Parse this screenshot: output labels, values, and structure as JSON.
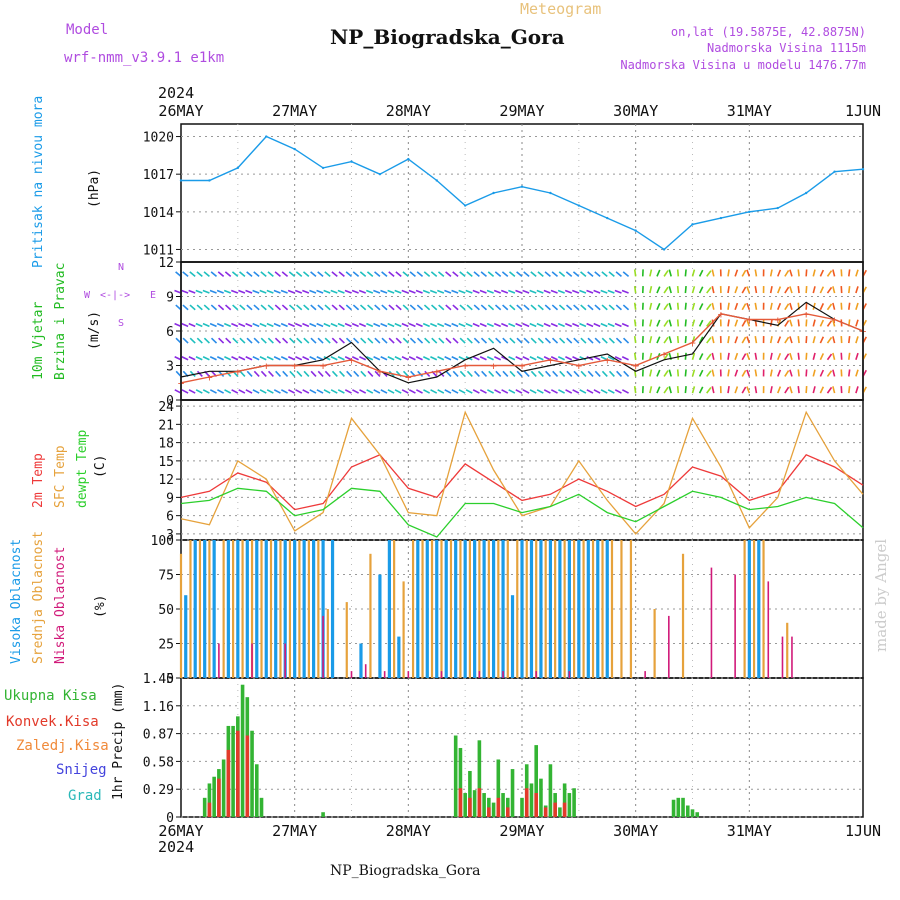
{
  "header": {
    "model_label": "Model",
    "model_name": "wrf-nmm_v3.9.1 e1km",
    "meteogram_label": "Meteogram",
    "station_title": "NP_Biogradska_Gora",
    "lonlat": "on,lat (19.5875E, 42.8875N)",
    "altitude": "Nadmorska Visina 1115m",
    "model_altitude": "Nadmorska Visina u modelu 1476.77m",
    "footer_station": "NP_Biogradska_Gora",
    "credit": "made by Angel"
  },
  "colors": {
    "purple": "#b04ce0",
    "pressure": "#1a9be8",
    "wind_green": "#22bb22",
    "temp2m": "#ee3a3a",
    "sfc_temp": "#e6a23c",
    "dewpt": "#2ccf2c",
    "high_cloud": "#1a9be8",
    "mid_cloud": "#e6a23c",
    "low_cloud": "#d11a7a",
    "total_precip": "#33b433",
    "conv_precip": "#e23a2a",
    "snow": "#4444dd",
    "grad": "#2ab8b8",
    "meteogram_title": "#e8c27c"
  },
  "chart_data": [
    {
      "type": "line",
      "panel": "pressure",
      "ylabel_left": "Pritisak na nivou mora",
      "ylabel_unit": "(hPa)",
      "ylim": [
        1010,
        1021
      ],
      "yticks": [
        1011,
        1014,
        1017,
        1020
      ],
      "x_ticks": [
        "26MAY",
        "27MAY",
        "28MAY",
        "29MAY",
        "30MAY",
        "31MAY",
        "1JUN"
      ],
      "x_year": "2024",
      "x": [
        0,
        6,
        12,
        18,
        24,
        30,
        36,
        42,
        48,
        54,
        60,
        66,
        72,
        78,
        84,
        90,
        96,
        102,
        108,
        114,
        120,
        126,
        132,
        138,
        144
      ],
      "values": [
        1016.5,
        1016.5,
        1017.5,
        1020.0,
        1019.0,
        1017.5,
        1018.0,
        1017.0,
        1018.2,
        1016.5,
        1014.5,
        1015.5,
        1016.0,
        1015.5,
        1014.5,
        1013.5,
        1012.5,
        1011.0,
        1013.0,
        1013.5,
        1014.0,
        1014.3,
        1015.5,
        1017.2,
        1017.4
      ]
    },
    {
      "type": "line",
      "panel": "wind",
      "ylabel_left": "10m Vjetar Brzina i Pravac",
      "ylabel_unit": "(m/s)",
      "ylim": [
        0,
        12
      ],
      "yticks": [
        0,
        3,
        6,
        9,
        12
      ],
      "compass": {
        "n": "N",
        "s": "S",
        "w": "W",
        "e": "E"
      },
      "x": [
        0,
        6,
        12,
        18,
        24,
        30,
        36,
        42,
        48,
        54,
        60,
        66,
        72,
        78,
        84,
        90,
        96,
        102,
        108,
        114,
        120,
        126,
        132,
        138,
        144
      ],
      "series": [
        {
          "values": [
            2.0,
            2.5,
            2.5,
            3.0,
            3.0,
            3.5,
            5.0,
            2.5,
            1.5,
            2.0,
            3.5,
            4.5,
            2.5,
            3.0,
            3.5,
            4.0,
            2.5,
            3.5,
            4.0,
            7.5,
            7.0,
            6.5,
            8.5,
            7.0,
            6.0
          ]
        },
        {
          "values": [
            1.5,
            2.0,
            2.5,
            3.0,
            3.0,
            3.0,
            3.5,
            2.5,
            2.0,
            2.5,
            3.0,
            3.0,
            3.0,
            3.5,
            3.0,
            3.5,
            3.0,
            4.0,
            5.0,
            7.5,
            7.0,
            7.0,
            7.5,
            7.0,
            6.0
          ]
        }
      ]
    },
    {
      "type": "line",
      "panel": "temperature",
      "ylabel_unit": "(C)",
      "ylim": [
        2,
        25
      ],
      "yticks": [
        3,
        6,
        9,
        12,
        15,
        18,
        21,
        24
      ],
      "x": [
        0,
        6,
        12,
        18,
        24,
        30,
        36,
        42,
        48,
        54,
        60,
        66,
        72,
        78,
        84,
        90,
        96,
        102,
        108,
        114,
        120,
        126,
        132,
        138,
        144
      ],
      "series": [
        {
          "name": "2m Temp",
          "values": [
            9.0,
            10.0,
            13.0,
            11.5,
            7.0,
            8.0,
            14.0,
            16.0,
            10.5,
            9.0,
            14.5,
            11.5,
            8.5,
            9.5,
            12.0,
            10.0,
            7.5,
            9.5,
            14.0,
            12.5,
            8.5,
            10.0,
            16.0,
            14.0,
            11.0
          ]
        },
        {
          "name": "SFC Temp",
          "values": [
            5.5,
            4.5,
            15.0,
            12.0,
            3.5,
            6.5,
            22.0,
            16.0,
            6.5,
            6.0,
            23.0,
            13.5,
            6.0,
            7.5,
            15.0,
            8.5,
            3.0,
            8.0,
            22.0,
            14.0,
            4.0,
            9.0,
            23.0,
            15.0,
            9.5
          ]
        },
        {
          "name": "dewpt Temp",
          "values": [
            8.0,
            8.5,
            10.5,
            10.0,
            6.0,
            7.0,
            10.5,
            10.0,
            4.5,
            2.5,
            8.0,
            8.0,
            6.5,
            7.5,
            9.5,
            6.5,
            5.0,
            7.5,
            10.0,
            9.0,
            7.0,
            7.5,
            9.0,
            8.0,
            4.0
          ]
        }
      ]
    },
    {
      "type": "bar",
      "panel": "cloud",
      "ylabel_unit": "(%)",
      "ylim": [
        0,
        100
      ],
      "yticks": [
        0,
        25,
        50,
        75,
        100
      ],
      "series": [
        {
          "name": "Visoka Oblacnost",
          "x": [
            1,
            3,
            5,
            7,
            10,
            12,
            14,
            16,
            18,
            20,
            22,
            24,
            26,
            28,
            30,
            32,
            38,
            42,
            44,
            46,
            50,
            52,
            54,
            56,
            58,
            60,
            62,
            64,
            66,
            68,
            70,
            72,
            74,
            76,
            78,
            80,
            82,
            84,
            86,
            88,
            90,
            120,
            122
          ],
          "values": [
            60,
            100,
            100,
            100,
            100,
            100,
            100,
            100,
            100,
            100,
            100,
            100,
            100,
            100,
            100,
            100,
            25,
            75,
            100,
            30,
            100,
            100,
            100,
            100,
            100,
            100,
            100,
            100,
            100,
            100,
            60,
            100,
            100,
            100,
            100,
            100,
            100,
            100,
            100,
            100,
            100,
            100,
            100
          ]
        },
        {
          "name": "Srednja Oblacnost",
          "x": [
            0,
            2,
            4,
            6,
            9,
            11,
            13,
            15,
            17,
            19,
            21,
            23,
            25,
            27,
            29,
            31,
            35,
            40,
            45,
            47,
            49,
            51,
            53,
            55,
            57,
            59,
            61,
            63,
            65,
            67,
            69,
            71,
            73,
            75,
            77,
            79,
            81,
            83,
            85,
            87,
            89,
            91,
            93,
            95,
            100,
            106,
            119,
            121,
            123,
            128
          ],
          "values": [
            90,
            100,
            100,
            100,
            100,
            100,
            100,
            100,
            100,
            100,
            100,
            100,
            100,
            100,
            100,
            50,
            55,
            90,
            100,
            70,
            100,
            100,
            100,
            100,
            100,
            100,
            100,
            100,
            100,
            100,
            100,
            100,
            100,
            100,
            100,
            100,
            100,
            100,
            100,
            100,
            100,
            100,
            100,
            100,
            50,
            90,
            100,
            100,
            100,
            40
          ]
        },
        {
          "name": "Niska Oblacnost",
          "x": [
            8,
            15,
            22,
            30,
            36,
            39,
            43,
            48,
            55,
            63,
            68,
            75,
            82,
            98,
            103,
            112,
            117,
            124,
            127,
            129
          ],
          "values": [
            25,
            25,
            25,
            45,
            5,
            10,
            5,
            5,
            5,
            5,
            5,
            5,
            5,
            5,
            45,
            80,
            75,
            70,
            30,
            30
          ]
        }
      ]
    },
    {
      "type": "bar",
      "panel": "precip",
      "ylabel_unit": "1hr Precip (mm)",
      "ylim": [
        0,
        1.45
      ],
      "yticks": [
        0,
        0.29,
        0.58,
        0.87,
        1.16,
        1.45
      ],
      "series": [
        {
          "name": "Ukupna Kisa",
          "x": [
            5,
            6,
            7,
            8,
            9,
            10,
            11,
            12,
            13,
            14,
            15,
            16,
            17,
            30,
            58,
            59,
            60,
            61,
            62,
            63,
            64,
            65,
            66,
            67,
            68,
            69,
            70,
            72,
            73,
            74,
            75,
            76,
            77,
            78,
            79,
            80,
            81,
            82,
            83,
            104,
            105,
            106,
            107,
            108,
            109
          ],
          "values": [
            0.2,
            0.35,
            0.42,
            0.5,
            0.6,
            0.95,
            0.95,
            1.05,
            1.38,
            1.25,
            0.9,
            0.55,
            0.2,
            0.05,
            0.85,
            0.72,
            0.25,
            0.48,
            0.28,
            0.8,
            0.25,
            0.2,
            0.15,
            0.6,
            0.25,
            0.2,
            0.5,
            0.2,
            0.55,
            0.35,
            0.75,
            0.4,
            0.12,
            0.55,
            0.25,
            0.1,
            0.35,
            0.25,
            0.3,
            0.18,
            0.2,
            0.2,
            0.12,
            0.08,
            0.05
          ]
        },
        {
          "name": "Konvek.Kisa",
          "x": [
            6,
            8,
            10,
            12,
            14,
            59,
            61,
            63,
            65,
            67,
            69,
            73,
            75,
            77,
            79,
            81
          ],
          "values": [
            0.15,
            0.4,
            0.7,
            0.9,
            0.85,
            0.3,
            0.2,
            0.3,
            0.1,
            0.2,
            0.1,
            0.3,
            0.25,
            0.1,
            0.15,
            0.15
          ]
        },
        {
          "name": "Zaledj.Kisa",
          "x": [],
          "values": []
        },
        {
          "name": "Snijeg",
          "x": [],
          "values": []
        },
        {
          "name": "Grad",
          "x": [],
          "values": []
        }
      ]
    }
  ]
}
